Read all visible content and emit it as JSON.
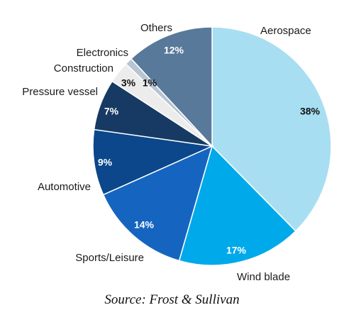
{
  "chart_data": {
    "type": "pie",
    "start": "12 o'clock",
    "direction": "clockwise",
    "slices": [
      {
        "label": "Aerospace",
        "value": 38,
        "value_label": "38%",
        "color": "#a8def2",
        "text_color": "#111111"
      },
      {
        "label": "Wind blade",
        "value": 17,
        "value_label": "17%",
        "color": "#00a9ea",
        "text_color": "#ffffff"
      },
      {
        "label": "Sports/Leisure",
        "value": 14,
        "value_label": "14%",
        "color": "#1565c0",
        "text_color": "#ffffff"
      },
      {
        "label": "Automotive",
        "value": 9,
        "value_label": "9%",
        "color": "#0b478a",
        "text_color": "#ffffff"
      },
      {
        "label": "Pressure vessel",
        "value": 7,
        "value_label": "7%",
        "color": "#163a63",
        "text_color": "#ffffff"
      },
      {
        "label": "Construction",
        "value": 3,
        "value_label": "3%",
        "color": "#ececec",
        "text_color": "#111111"
      },
      {
        "label": "Electronics",
        "value": 1,
        "value_label": "1%",
        "color": "#b7c4d4",
        "text_color": "#111111"
      },
      {
        "label": "Others",
        "value": 12,
        "value_label": "12%",
        "color": "#587999",
        "text_color": "#ffffff"
      }
    ]
  },
  "source": "Source: Frost & Sullivan"
}
